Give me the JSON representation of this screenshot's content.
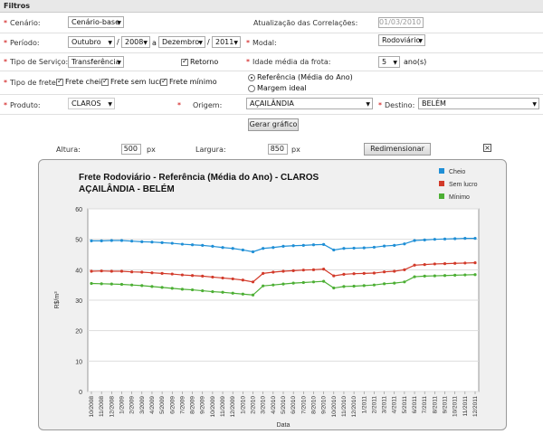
{
  "filters": {
    "title": "Filtros",
    "cenario": {
      "label": "Cenário:",
      "value": "Cenário-base"
    },
    "atualizacao": {
      "label": "Atualização das Correlações:",
      "value": "01/03/2010"
    },
    "periodo": {
      "label": "Período:",
      "mes_inicio": "Outubro",
      "ano_inicio": "2008",
      "sep": "a",
      "mes_fim": "Dezembro",
      "ano_fim": "2011"
    },
    "modal": {
      "label": "Modal:",
      "value": "Rodoviário"
    },
    "tipo_servico": {
      "label": "Tipo de Serviço:",
      "value": "Transferência",
      "retorno": "Retorno"
    },
    "idade_frota": {
      "label": "Idade média da frota:",
      "value": "5",
      "unit": "ano(s)"
    },
    "tipo_frete": {
      "label": "Tipo de frete:",
      "cheio": "Frete cheio",
      "sem_lucro": "Frete sem lucro",
      "minimo": "Frete mínimo"
    },
    "referencia": {
      "ref": "Referência (Média do Ano)",
      "margem": "Margem ideal"
    },
    "produto": {
      "label": "Produto:",
      "value": "CLAROS"
    },
    "origem": {
      "label": "Origem:",
      "value": "AÇAILÂNDIA"
    },
    "destino": {
      "label": "Destino:",
      "value": "BELÉM"
    },
    "gerar": "Gerar gráfico"
  },
  "resize": {
    "altura_label": "Altura:",
    "altura": "500",
    "largura_label": "Largura:",
    "largura": "850",
    "px": "px",
    "redimensionar": "Redimensionar"
  },
  "chart_data": {
    "type": "line",
    "title": "Frete Rodoviário - Referência (Média do Ano) - CLAROS",
    "subtitle": "AÇAILÂNDIA - BELÉM",
    "xlabel": "Data",
    "ylabel": "R$/m³",
    "ylim": [
      0,
      60
    ],
    "yticks": [
      0,
      10,
      20,
      30,
      40,
      50,
      60
    ],
    "grid": true,
    "legend_position": "top-right",
    "x": [
      "10/2008",
      "11/2008",
      "12/2008",
      "1/2009",
      "2/2009",
      "3/2009",
      "4/2009",
      "5/2009",
      "6/2009",
      "7/2009",
      "8/2009",
      "9/2009",
      "10/2009",
      "11/2009",
      "12/2009",
      "1/2010",
      "2/2010",
      "3/2010",
      "4/2010",
      "5/2010",
      "6/2010",
      "7/2010",
      "8/2010",
      "9/2010",
      "10/2010",
      "11/2010",
      "12/2010",
      "1/2011",
      "2/2011",
      "3/2011",
      "4/2011",
      "5/2011",
      "6/2011",
      "7/2011",
      "8/2011",
      "9/2011",
      "10/2011",
      "11/2011",
      "12/2011"
    ],
    "series": [
      {
        "name": "Cheio",
        "color": "#1f8fd6",
        "values": [
          49.5,
          49.5,
          49.6,
          49.6,
          49.4,
          49.2,
          49.1,
          48.9,
          48.7,
          48.4,
          48.2,
          48.0,
          47.7,
          47.3,
          47.0,
          46.5,
          45.9,
          47.0,
          47.3,
          47.7,
          47.9,
          48.0,
          48.2,
          48.3,
          46.5,
          47.0,
          47.1,
          47.2,
          47.4,
          47.8,
          48.0,
          48.5,
          49.6,
          49.8,
          50.0,
          50.1,
          50.2,
          50.3,
          50.3
        ]
      },
      {
        "name": "Sem lucro",
        "color": "#d23a2a",
        "values": [
          39.5,
          39.6,
          39.5,
          39.5,
          39.3,
          39.2,
          39.0,
          38.8,
          38.6,
          38.3,
          38.1,
          37.9,
          37.6,
          37.3,
          37.0,
          36.6,
          36.0,
          38.8,
          39.2,
          39.5,
          39.7,
          39.9,
          40.0,
          40.2,
          38.0,
          38.5,
          38.7,
          38.8,
          38.9,
          39.3,
          39.5,
          40.0,
          41.5,
          41.7,
          41.9,
          42.0,
          42.1,
          42.2,
          42.3
        ]
      },
      {
        "name": "Mínimo",
        "color": "#4caf34",
        "values": [
          35.5,
          35.4,
          35.3,
          35.2,
          35.0,
          34.8,
          34.5,
          34.2,
          33.9,
          33.6,
          33.4,
          33.1,
          32.8,
          32.6,
          32.3,
          32.0,
          31.7,
          34.7,
          35.0,
          35.3,
          35.6,
          35.8,
          36.0,
          36.2,
          34.0,
          34.5,
          34.6,
          34.8,
          35.0,
          35.4,
          35.6,
          36.0,
          37.7,
          37.9,
          38.0,
          38.1,
          38.2,
          38.3,
          38.4
        ]
      }
    ]
  }
}
